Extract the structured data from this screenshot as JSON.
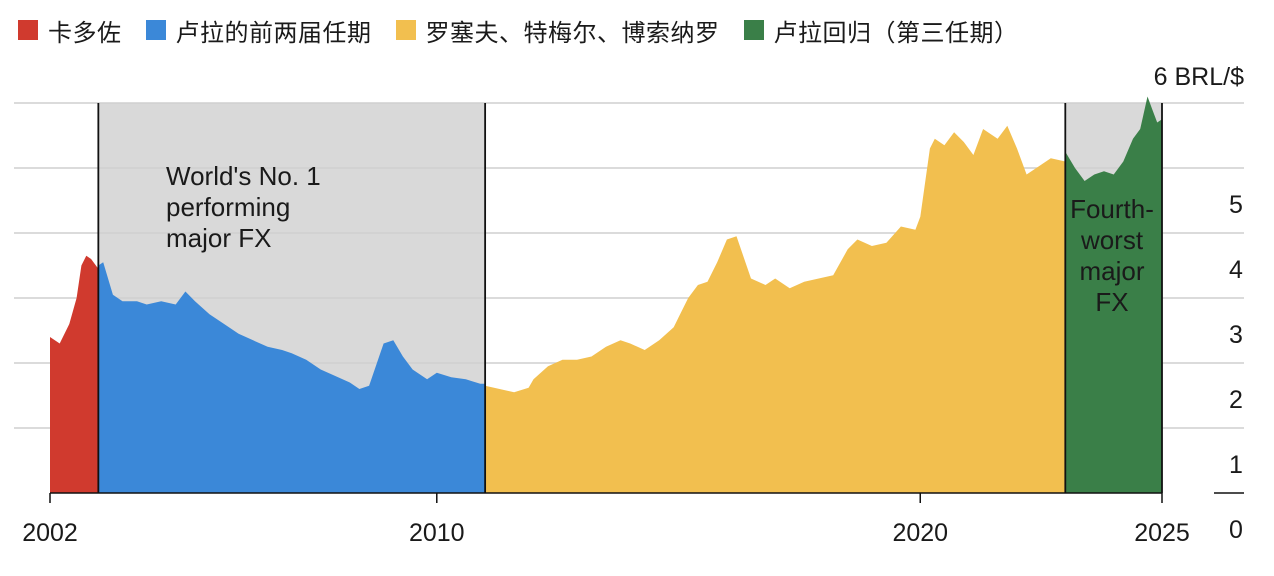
{
  "legend": [
    {
      "label": "卡多佐",
      "color": "#d03a2e"
    },
    {
      "label": "卢拉的前两届任期",
      "color": "#3b88d8"
    },
    {
      "label": "罗塞夫、特梅尔、博索纳罗",
      "color": "#f2bf4f"
    },
    {
      "label": "卢拉回归（第三任期）",
      "color": "#3a7f48"
    }
  ],
  "chart_data": {
    "type": "area",
    "unit_label": "6 BRL/$",
    "ylabel": "BRL/$",
    "ylim": [
      0,
      6
    ],
    "y_ticks": [
      {
        "value": 5,
        "label": "5"
      },
      {
        "value": 4,
        "label": "4"
      },
      {
        "value": 3,
        "label": "3"
      },
      {
        "value": 2,
        "label": "2"
      },
      {
        "value": 1,
        "label": "1"
      },
      {
        "value": 0,
        "label": "0"
      }
    ],
    "xlim": [
      2002,
      2025.5
    ],
    "x_ticks": [
      {
        "value": 2002,
        "label": "2002"
      },
      {
        "value": 2010,
        "label": "2010"
      },
      {
        "value": 2020,
        "label": "2020"
      },
      {
        "value": 2025,
        "label": "2025"
      }
    ],
    "grid": true,
    "shaded_periods": [
      {
        "start": 2003.0,
        "end": 2011.0,
        "color": "#d9d9d9",
        "annotation": [
          "World's No. 1",
          "performing",
          "major FX"
        ]
      },
      {
        "start": 2023.0,
        "end": 2025.0,
        "color": "#d9d9d9",
        "annotation": [
          "Fourth-",
          "worst",
          "major",
          "FX"
        ]
      }
    ],
    "series": [
      {
        "name": "卡多佐",
        "color": "#d03a2e",
        "x": [
          2002.0,
          2002.2,
          2002.4,
          2002.55,
          2002.65,
          2002.75,
          2002.85,
          2002.95,
          2003.0
        ],
        "y": [
          2.4,
          2.3,
          2.6,
          3.0,
          3.5,
          3.65,
          3.6,
          3.5,
          3.45
        ]
      },
      {
        "name": "卢拉的前两届任期",
        "color": "#3b88d8",
        "x": [
          2003.0,
          2003.1,
          2003.3,
          2003.5,
          2003.8,
          2004.0,
          2004.3,
          2004.6,
          2004.8,
          2005.0,
          2005.3,
          2005.6,
          2005.9,
          2006.2,
          2006.5,
          2006.8,
          2007.0,
          2007.3,
          2007.6,
          2007.9,
          2008.2,
          2008.4,
          2008.6,
          2008.9,
          2009.1,
          2009.3,
          2009.5,
          2009.8,
          2010.0,
          2010.3,
          2010.6,
          2010.9,
          2011.0
        ],
        "y": [
          3.5,
          3.55,
          3.05,
          2.95,
          2.95,
          2.9,
          2.95,
          2.9,
          3.1,
          2.95,
          2.75,
          2.6,
          2.45,
          2.35,
          2.25,
          2.2,
          2.15,
          2.05,
          1.9,
          1.8,
          1.7,
          1.6,
          1.65,
          2.3,
          2.35,
          2.1,
          1.9,
          1.75,
          1.85,
          1.78,
          1.75,
          1.68,
          1.68
        ]
      },
      {
        "name": "罗塞夫、特梅尔、博索纳罗",
        "color": "#f2bf4f",
        "x": [
          2011.0,
          2011.3,
          2011.6,
          2011.9,
          2012.0,
          2012.3,
          2012.6,
          2012.9,
          2013.2,
          2013.5,
          2013.8,
          2014.0,
          2014.3,
          2014.6,
          2014.9,
          2015.0,
          2015.2,
          2015.4,
          2015.6,
          2015.8,
          2016.0,
          2016.2,
          2016.5,
          2016.8,
          2017.0,
          2017.3,
          2017.6,
          2017.9,
          2018.2,
          2018.5,
          2018.7,
          2019.0,
          2019.3,
          2019.6,
          2019.9,
          2020.0,
          2020.2,
          2020.3,
          2020.5,
          2020.7,
          2020.9,
          2021.1,
          2021.3,
          2021.6,
          2021.8,
          2022.0,
          2022.2,
          2022.4,
          2022.7,
          2023.0
        ],
        "y": [
          1.65,
          1.6,
          1.55,
          1.62,
          1.75,
          1.95,
          2.05,
          2.05,
          2.1,
          2.25,
          2.35,
          2.3,
          2.2,
          2.35,
          2.55,
          2.7,
          3.0,
          3.2,
          3.25,
          3.55,
          3.9,
          3.95,
          3.3,
          3.2,
          3.3,
          3.15,
          3.25,
          3.3,
          3.35,
          3.75,
          3.9,
          3.8,
          3.85,
          4.1,
          4.05,
          4.25,
          5.3,
          5.45,
          5.35,
          5.55,
          5.4,
          5.2,
          5.6,
          5.45,
          5.65,
          5.3,
          4.9,
          5.0,
          5.15,
          5.1
        ]
      },
      {
        "name": "卢拉回归（第三任期）",
        "color": "#3a7f48",
        "x": [
          2023.0,
          2023.2,
          2023.4,
          2023.6,
          2023.8,
          2024.0,
          2024.2,
          2024.4,
          2024.55,
          2024.7,
          2024.8,
          2024.9,
          2025.0
        ],
        "y": [
          5.25,
          5.0,
          4.8,
          4.9,
          4.95,
          4.9,
          5.1,
          5.45,
          5.6,
          6.1,
          5.9,
          5.7,
          5.75
        ]
      }
    ]
  }
}
